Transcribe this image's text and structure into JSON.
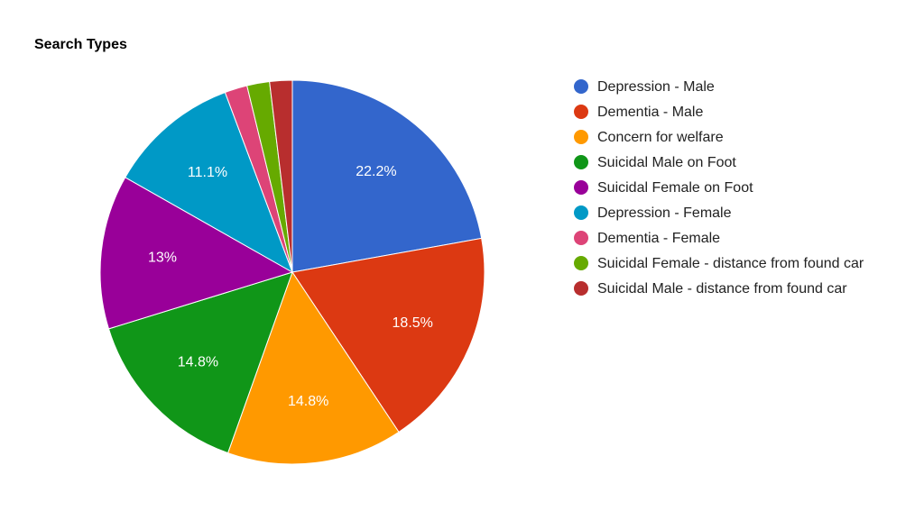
{
  "chart_data": {
    "type": "pie",
    "title": "Search Types",
    "categories": [
      "Depression - Male",
      "Dementia - Male",
      "Concern for welfare",
      "Suicidal Male on Foot",
      "Suicidal Female on Foot",
      "Depression - Female",
      "Dementia - Female",
      "Suicidal Female - distance from found car",
      "Suicidal Male - distance from found car"
    ],
    "values": [
      22.2,
      18.5,
      14.8,
      14.8,
      13.0,
      11.1,
      1.9,
      1.9,
      1.9
    ],
    "data_labels": [
      "22.2%",
      "18.5%",
      "14.8%",
      "14.8%",
      "13%",
      "11.1%",
      "",
      "",
      ""
    ],
    "colors": [
      "#3366cc",
      "#dc3912",
      "#ff9900",
      "#109618",
      "#990099",
      "#0099c6",
      "#dd4477",
      "#66aa00",
      "#b82e2e"
    ],
    "legend_position": "right"
  }
}
